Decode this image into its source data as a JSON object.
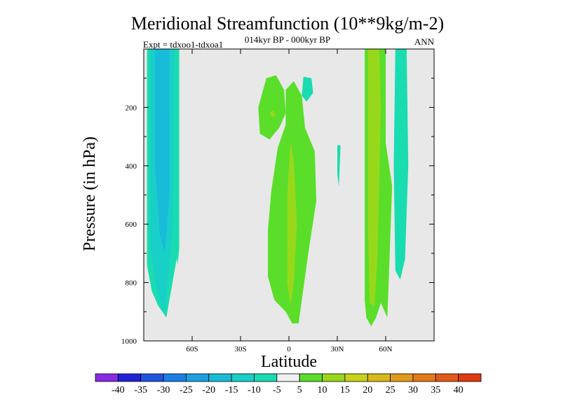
{
  "chart_data": {
    "type": "heatmap",
    "title": "Meridional Streamfunction (10**9kg/m-2)",
    "subtitle": "014kyr BP - 000kyr BP",
    "left_label": "Expt = tdxoo1-tdxoa1",
    "right_label": "ANN",
    "xlabel": "Latitude",
    "ylabel": "Pressure (in hPa)",
    "xlim": [
      -90,
      90
    ],
    "ylim": [
      1000,
      0
    ],
    "x_ticks": [
      {
        "value": -60,
        "label": "60S"
      },
      {
        "value": -30,
        "label": "30S"
      },
      {
        "value": 0,
        "label": "0"
      },
      {
        "value": 30,
        "label": "30N"
      },
      {
        "value": 60,
        "label": "60N"
      }
    ],
    "y_ticks": [
      {
        "value": 200,
        "label": "200"
      },
      {
        "value": 400,
        "label": "400"
      },
      {
        "value": 600,
        "label": "600"
      },
      {
        "value": 800,
        "label": "800"
      },
      {
        "value": 1000,
        "label": "1000"
      }
    ],
    "background_color": "#e8e8e8",
    "colorbar": {
      "levels": [
        "-40",
        "-35",
        "-30",
        "-25",
        "-20",
        "-15",
        "-10",
        "-5",
        "5",
        "10",
        "15",
        "20",
        "25",
        "30",
        "35",
        "40"
      ],
      "colors": [
        "#8a2be2",
        "#2222d8",
        "#1f55e0",
        "#1a7fe6",
        "#1aa0e0",
        "#19bcd8",
        "#19d0c8",
        "#19dcb0",
        "#f0f0f0",
        "#5ade2a",
        "#98d81a",
        "#c8d21a",
        "#dab81a",
        "#e09a1a",
        "#e27a1a",
        "#e25a1a",
        "#e03a10"
      ]
    },
    "regions": [
      {
        "name": "SH high-latitude outer band",
        "level": "-5 to -10",
        "color": "#19dcb0",
        "polygon": [
          [
            -88,
            0
          ],
          [
            -69,
            0
          ],
          [
            -69,
            700
          ],
          [
            -76,
            920
          ],
          [
            -81,
            880
          ],
          [
            -85,
            830
          ],
          [
            -88,
            740
          ]
        ]
      },
      {
        "name": "SH high-latitude band",
        "level": "-10 to -15",
        "color": "#19d0c8",
        "polygon": [
          [
            -86,
            0
          ],
          [
            -71,
            0
          ],
          [
            -72,
            620
          ],
          [
            -77,
            910
          ],
          [
            -82,
            820
          ],
          [
            -86,
            680
          ]
        ]
      },
      {
        "name": "SH high-latitude core",
        "level": "-15 to -20",
        "color": "#19bcd8",
        "polygon": [
          [
            -83,
            0
          ],
          [
            -74,
            0
          ],
          [
            -74,
            500
          ],
          [
            -77,
            700
          ],
          [
            -80,
            640
          ],
          [
            -83,
            400
          ]
        ]
      },
      {
        "name": "SH strip near 70S",
        "level": "-5 to -10",
        "color": "#19dcb0",
        "polygon": [
          [
            -70,
            0
          ],
          [
            -68,
            0
          ],
          [
            -68,
            680
          ],
          [
            -69,
            740
          ],
          [
            -70,
            690
          ]
        ]
      },
      {
        "name": "Tropical upper cell",
        "level": "5 to 10",
        "color": "#5ade2a",
        "polygon": [
          [
            -19,
            200
          ],
          [
            -14,
            100
          ],
          [
            -8,
            90
          ],
          [
            -3,
            140
          ],
          [
            -2,
            220
          ],
          [
            -6,
            270
          ],
          [
            -12,
            310
          ],
          [
            -18,
            290
          ]
        ]
      },
      {
        "name": "Tropical upper core",
        "level": "10 to 15",
        "color": "#98d81a",
        "polygon": [
          [
            -12,
            220
          ],
          [
            -10,
            210
          ],
          [
            -8,
            225
          ],
          [
            -10,
            235
          ]
        ]
      },
      {
        "name": "Tropical lower cell",
        "level": "5 to 10",
        "color": "#5ade2a",
        "polygon": [
          [
            -2,
            140
          ],
          [
            3,
            110
          ],
          [
            8,
            160
          ],
          [
            10,
            270
          ],
          [
            16,
            350
          ],
          [
            17,
            520
          ],
          [
            12,
            700
          ],
          [
            9,
            820
          ],
          [
            6,
            940
          ],
          [
            2,
            940
          ],
          [
            -2,
            900
          ],
          [
            -9,
            860
          ],
          [
            -13,
            780
          ],
          [
            -13,
            620
          ],
          [
            -11,
            490
          ],
          [
            -7,
            340
          ],
          [
            -2,
            260
          ]
        ]
      },
      {
        "name": "Tropical lower core",
        "level": "10 to 15",
        "color": "#98d81a",
        "polygon": [
          [
            1,
            320
          ],
          [
            3,
            380
          ],
          [
            5,
            600
          ],
          [
            3,
            800
          ],
          [
            1,
            880
          ],
          [
            -1,
            800
          ],
          [
            -1,
            500
          ]
        ]
      },
      {
        "name": "Tropical small negative",
        "level": "-5 to -10",
        "color": "#19dcb0",
        "polygon": [
          [
            9,
            95
          ],
          [
            14,
            100
          ],
          [
            15,
            150
          ],
          [
            11,
            180
          ],
          [
            8,
            160
          ]
        ]
      },
      {
        "name": "Subtropical thin negative",
        "level": "-5 to -10",
        "color": "#19dcb0",
        "polygon": [
          [
            30,
            330
          ],
          [
            32,
            330
          ],
          [
            31,
            470
          ],
          [
            30,
            430
          ]
        ]
      },
      {
        "name": "NH mid-latitude positive band",
        "level": "5 to 10",
        "color": "#5ade2a",
        "polygon": [
          [
            47,
            0
          ],
          [
            60,
            0
          ],
          [
            60,
            320
          ],
          [
            64,
            470
          ],
          [
            63,
            620
          ],
          [
            62,
            780
          ],
          [
            61,
            920
          ],
          [
            57,
            870
          ],
          [
            54,
            920
          ],
          [
            51,
            950
          ],
          [
            48,
            920
          ],
          [
            47,
            860
          ]
        ]
      },
      {
        "name": "NH mid-latitude core",
        "level": "10 to 15",
        "color": "#98d81a",
        "polygon": [
          [
            49,
            0
          ],
          [
            56,
            0
          ],
          [
            57,
            200
          ],
          [
            55,
            700
          ],
          [
            53,
            880
          ],
          [
            50,
            870
          ],
          [
            49,
            600
          ]
        ]
      },
      {
        "name": "NH high-latitude negative",
        "level": "-5 to -10",
        "color": "#19dcb0",
        "polygon": [
          [
            66,
            0
          ],
          [
            73,
            0
          ],
          [
            74,
            400
          ],
          [
            72,
            720
          ],
          [
            69,
            790
          ],
          [
            66,
            760
          ],
          [
            65,
            400
          ]
        ]
      }
    ]
  }
}
